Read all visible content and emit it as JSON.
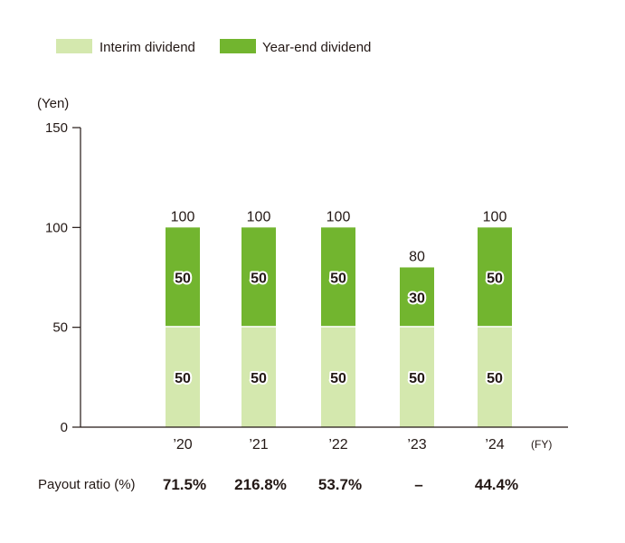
{
  "legend": {
    "interim_label": "Interim dividend",
    "yearend_label": "Year-end dividend"
  },
  "colors": {
    "interim": "#d4e8ae",
    "yearend": "#72b52f",
    "axis": "#231815"
  },
  "chart_data": {
    "type": "bar",
    "stacked": true,
    "categories": [
      "’20",
      "’21",
      "’22",
      "’23",
      "’24"
    ],
    "series": [
      {
        "name": "Interim dividend",
        "values": [
          50,
          50,
          50,
          50,
          50
        ]
      },
      {
        "name": "Year-end dividend",
        "values": [
          50,
          50,
          50,
          30,
          50
        ]
      }
    ],
    "totals": [
      "100",
      "100",
      "100",
      "80",
      "100"
    ],
    "ylabel": "(Yen)",
    "xunit": "(FY)",
    "ylim": [
      0,
      150
    ],
    "yticks": [
      0,
      50,
      100,
      150
    ],
    "legend_position": "top-left",
    "grid": false
  },
  "payout": {
    "title": "Payout ratio (%)",
    "values": [
      "71.5%",
      "216.8%",
      "53.7%",
      "–",
      "44.4%"
    ]
  }
}
